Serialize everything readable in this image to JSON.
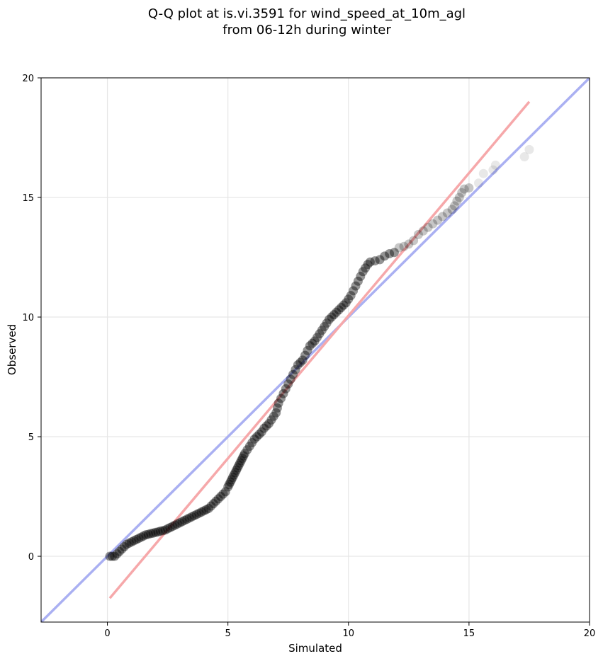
{
  "chart_data": {
    "type": "scatter",
    "title_line1": "Q-Q plot at is.vi.3591 for wind_speed_at_10m_agl",
    "title_line2": "from 06-12h during winter",
    "xlabel": "Simulated",
    "ylabel": "Observed",
    "xlim": [
      -2.75,
      20
    ],
    "ylim": [
      -2.75,
      20
    ],
    "xticks": [
      0,
      5,
      10,
      15,
      20
    ],
    "yticks": [
      0,
      5,
      10,
      15,
      20
    ],
    "grid": true,
    "colors": {
      "points": "#000000",
      "identity_line": "#aab0f2",
      "fit_line": "#f6a8aa"
    },
    "identity_line": {
      "x": [
        -2.75,
        20
      ],
      "y": [
        -2.75,
        20
      ]
    },
    "fit_line": {
      "x": [
        0.1,
        17.5
      ],
      "y": [
        -1.75,
        19.0
      ]
    },
    "points": [
      [
        0.1,
        0.0
      ],
      [
        0.2,
        0.0
      ],
      [
        0.3,
        0.0
      ],
      [
        0.4,
        0.1
      ],
      [
        0.5,
        0.2
      ],
      [
        0.6,
        0.3
      ],
      [
        0.7,
        0.4
      ],
      [
        0.8,
        0.5
      ],
      [
        0.9,
        0.55
      ],
      [
        1.0,
        0.6
      ],
      [
        1.1,
        0.65
      ],
      [
        1.2,
        0.7
      ],
      [
        1.3,
        0.75
      ],
      [
        1.4,
        0.8
      ],
      [
        1.5,
        0.85
      ],
      [
        1.6,
        0.9
      ],
      [
        1.7,
        0.92
      ],
      [
        1.8,
        0.95
      ],
      [
        1.9,
        0.97
      ],
      [
        2.0,
        1.0
      ],
      [
        2.1,
        1.02
      ],
      [
        2.2,
        1.05
      ],
      [
        2.3,
        1.07
      ],
      [
        2.4,
        1.1
      ],
      [
        2.5,
        1.15
      ],
      [
        2.6,
        1.2
      ],
      [
        2.7,
        1.25
      ],
      [
        2.8,
        1.3
      ],
      [
        2.9,
        1.35
      ],
      [
        3.0,
        1.4
      ],
      [
        3.1,
        1.45
      ],
      [
        3.2,
        1.5
      ],
      [
        3.3,
        1.55
      ],
      [
        3.4,
        1.6
      ],
      [
        3.5,
        1.65
      ],
      [
        3.6,
        1.7
      ],
      [
        3.7,
        1.75
      ],
      [
        3.8,
        1.8
      ],
      [
        3.9,
        1.85
      ],
      [
        4.0,
        1.9
      ],
      [
        4.1,
        1.95
      ],
      [
        4.2,
        2.0
      ],
      [
        4.3,
        2.1
      ],
      [
        4.4,
        2.2
      ],
      [
        4.5,
        2.3
      ],
      [
        4.6,
        2.4
      ],
      [
        4.7,
        2.5
      ],
      [
        4.8,
        2.6
      ],
      [
        4.9,
        2.7
      ],
      [
        5.0,
        2.9
      ],
      [
        5.05,
        3.0
      ],
      [
        5.1,
        3.1
      ],
      [
        5.15,
        3.2
      ],
      [
        5.2,
        3.3
      ],
      [
        5.25,
        3.4
      ],
      [
        5.3,
        3.5
      ],
      [
        5.35,
        3.6
      ],
      [
        5.4,
        3.7
      ],
      [
        5.45,
        3.8
      ],
      [
        5.5,
        3.9
      ],
      [
        5.55,
        4.0
      ],
      [
        5.6,
        4.1
      ],
      [
        5.65,
        4.2
      ],
      [
        5.7,
        4.3
      ],
      [
        5.8,
        4.45
      ],
      [
        5.9,
        4.6
      ],
      [
        6.0,
        4.75
      ],
      [
        6.1,
        4.9
      ],
      [
        6.2,
        5.0
      ],
      [
        6.3,
        5.1
      ],
      [
        6.4,
        5.2
      ],
      [
        6.5,
        5.35
      ],
      [
        6.6,
        5.45
      ],
      [
        6.7,
        5.55
      ],
      [
        6.8,
        5.7
      ],
      [
        6.9,
        5.85
      ],
      [
        7.0,
        6.0
      ],
      [
        7.05,
        6.2
      ],
      [
        7.1,
        6.4
      ],
      [
        7.2,
        6.6
      ],
      [
        7.3,
        6.8
      ],
      [
        7.4,
        7.0
      ],
      [
        7.5,
        7.2
      ],
      [
        7.6,
        7.4
      ],
      [
        7.7,
        7.6
      ],
      [
        7.8,
        7.8
      ],
      [
        7.9,
        8.0
      ],
      [
        8.0,
        8.1
      ],
      [
        8.1,
        8.2
      ],
      [
        8.2,
        8.4
      ],
      [
        8.3,
        8.6
      ],
      [
        8.4,
        8.8
      ],
      [
        8.5,
        8.9
      ],
      [
        8.6,
        9.0
      ],
      [
        8.7,
        9.15
      ],
      [
        8.8,
        9.3
      ],
      [
        8.9,
        9.45
      ],
      [
        9.0,
        9.6
      ],
      [
        9.1,
        9.75
      ],
      [
        9.2,
        9.9
      ],
      [
        9.3,
        10.0
      ],
      [
        9.4,
        10.1
      ],
      [
        9.5,
        10.2
      ],
      [
        9.6,
        10.3
      ],
      [
        9.7,
        10.4
      ],
      [
        9.8,
        10.5
      ],
      [
        9.9,
        10.6
      ],
      [
        10.0,
        10.75
      ],
      [
        10.1,
        10.9
      ],
      [
        10.2,
        11.1
      ],
      [
        10.3,
        11.3
      ],
      [
        10.4,
        11.5
      ],
      [
        10.5,
        11.7
      ],
      [
        10.6,
        11.9
      ],
      [
        10.7,
        12.05
      ],
      [
        10.8,
        12.2
      ],
      [
        10.9,
        12.3
      ],
      [
        11.1,
        12.35
      ],
      [
        11.3,
        12.4
      ],
      [
        11.5,
        12.55
      ],
      [
        11.7,
        12.65
      ],
      [
        11.9,
        12.7
      ],
      [
        12.1,
        12.9
      ],
      [
        12.3,
        12.95
      ],
      [
        12.5,
        13.05
      ],
      [
        12.7,
        13.2
      ],
      [
        12.9,
        13.45
      ],
      [
        13.1,
        13.6
      ],
      [
        13.3,
        13.75
      ],
      [
        13.5,
        13.9
      ],
      [
        13.7,
        14.05
      ],
      [
        13.9,
        14.2
      ],
      [
        14.1,
        14.35
      ],
      [
        14.3,
        14.5
      ],
      [
        14.4,
        14.65
      ],
      [
        14.5,
        14.85
      ],
      [
        14.6,
        15.0
      ],
      [
        14.7,
        15.2
      ],
      [
        14.8,
        15.35
      ],
      [
        15.0,
        15.4
      ],
      [
        15.4,
        15.6
      ],
      [
        15.6,
        16.0
      ],
      [
        16.0,
        16.15
      ],
      [
        16.1,
        16.35
      ],
      [
        17.3,
        16.7
      ],
      [
        17.5,
        17.0
      ]
    ]
  }
}
